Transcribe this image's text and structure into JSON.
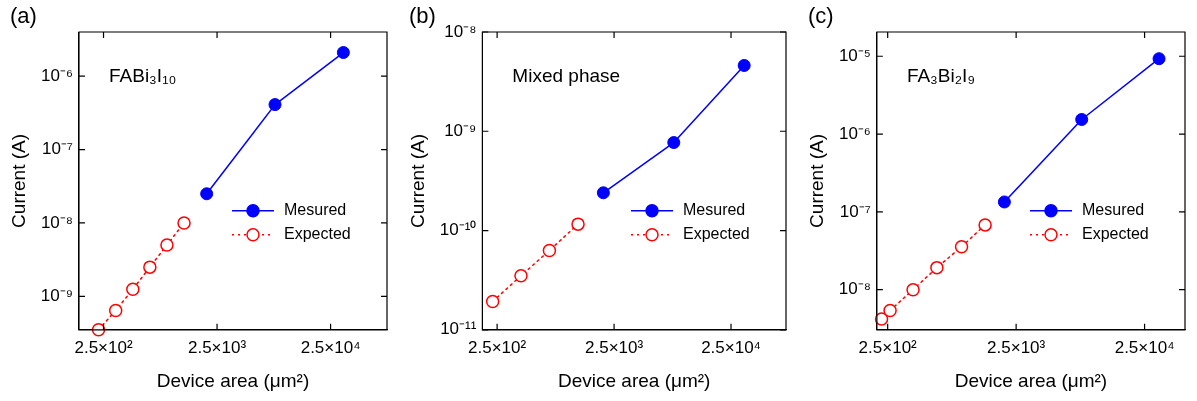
{
  "chart_data": [
    {
      "type": "line",
      "title": "(a)",
      "xlabel": "Device area (μm²)",
      "ylabel": "Current (A)",
      "annotations": [
        "FABi₃I₁₀"
      ],
      "log": "xy",
      "legend": "right",
      "marker": "circle",
      "xlim": [
        152,
        78500
      ],
      "xticks": [
        {
          "value": 250,
          "label": "2.5×10²"
        },
        {
          "value": 2500,
          "label": "2.5×10³"
        },
        {
          "value": 25000,
          "label": "2.5×10⁴"
        }
      ],
      "ylim": [
        3.5e-10,
        4e-06
      ],
      "yticks": [
        {
          "value": 1e-09,
          "label": "10⁻⁹"
        },
        {
          "value": 1e-08,
          "label": "10⁻⁸"
        },
        {
          "value": 1e-07,
          "label": "10⁻⁷"
        },
        {
          "value": 1e-06,
          "label": "10⁻⁶"
        }
      ],
      "series": [
        {
          "name": "Mesured",
          "color": "#0000ff",
          "line_style": "solid",
          "x": [
            2025,
            8100,
            32400
          ],
          "values": [
            2.5e-08,
            4.1e-07,
            2.1e-06
          ]
        },
        {
          "name": "Expected",
          "color": "#ff0000",
          "line_style": "dotted",
          "x": [
            226,
            320,
            453,
            640,
            905,
            1280
          ],
          "values": [
            3.5e-10,
            6.4e-10,
            1.25e-09,
            2.5e-09,
            5e-09,
            1e-08
          ]
        }
      ]
    },
    {
      "type": "line",
      "title": "(b)",
      "xlabel": "Device area (μm²)",
      "ylabel": "Current (A)",
      "annotations": [
        "Mixed phase"
      ],
      "log": "xy",
      "legend": "right",
      "marker": "circle",
      "xlim": [
        187,
        73800
      ],
      "xticks": [
        {
          "value": 250,
          "label": "2.5×10²"
        },
        {
          "value": 2500,
          "label": "2.5×10³"
        },
        {
          "value": 25000,
          "label": "2.5×10⁴"
        }
      ],
      "ylim": [
        1e-11,
        1e-08
      ],
      "yticks": [
        {
          "value": 1e-11,
          "label": "10⁻¹¹"
        },
        {
          "value": 1e-10,
          "label": "10⁻¹⁰"
        },
        {
          "value": 1e-09,
          "label": "10⁻⁹"
        },
        {
          "value": 1e-08,
          "label": "10⁻⁸"
        }
      ],
      "series": [
        {
          "name": "Mesured",
          "color": "#0000ff",
          "line_style": "solid",
          "x": [
            2025,
            8100,
            32400
          ],
          "values": [
            2.4e-10,
            7.7e-10,
            4.6e-09
          ]
        },
        {
          "name": "Expected",
          "color": "#ff0000",
          "line_style": "dotted",
          "x": [
            229,
            400,
            700,
            1230
          ],
          "values": [
            1.93e-11,
            3.5e-11,
            6.3e-11,
            1.16e-10
          ]
        }
      ]
    },
    {
      "type": "line",
      "title": "(c)",
      "xlabel": "Device area (μm²)",
      "ylabel": "Current (A)",
      "annotations": [
        "FA₃Bi₂I₉"
      ],
      "log": "xy",
      "legend": "right",
      "marker": "circle",
      "xlim": [
        206,
        51600
      ],
      "xticks": [
        {
          "value": 250,
          "label": "2.5×10²"
        },
        {
          "value": 2500,
          "label": "2.5×10³"
        },
        {
          "value": 25000,
          "label": "2.5×10⁴"
        }
      ],
      "ylim": [
        3.05e-09,
        2.05e-05
      ],
      "yticks": [
        {
          "value": 1e-08,
          "label": "10⁻⁸"
        },
        {
          "value": 1e-07,
          "label": "10⁻⁷"
        },
        {
          "value": 1e-06,
          "label": "10⁻⁶"
        },
        {
          "value": 1e-05,
          "label": "10⁻⁵"
        }
      ],
      "series": [
        {
          "name": "Mesured",
          "color": "#0000ff",
          "line_style": "solid",
          "x": [
            2025,
            8100,
            32400
          ],
          "values": [
            1.34e-07,
            1.54e-06,
            9.3e-06
          ]
        },
        {
          "name": "Expected",
          "color": "#ff0000",
          "line_style": "dotted",
          "x": [
            224,
            261,
            394,
            604,
            940,
            1434
          ],
          "values": [
            4.2e-09,
            5.4e-09,
            1e-08,
            1.92e-08,
            3.56e-08,
            6.8e-08
          ]
        }
      ]
    }
  ]
}
